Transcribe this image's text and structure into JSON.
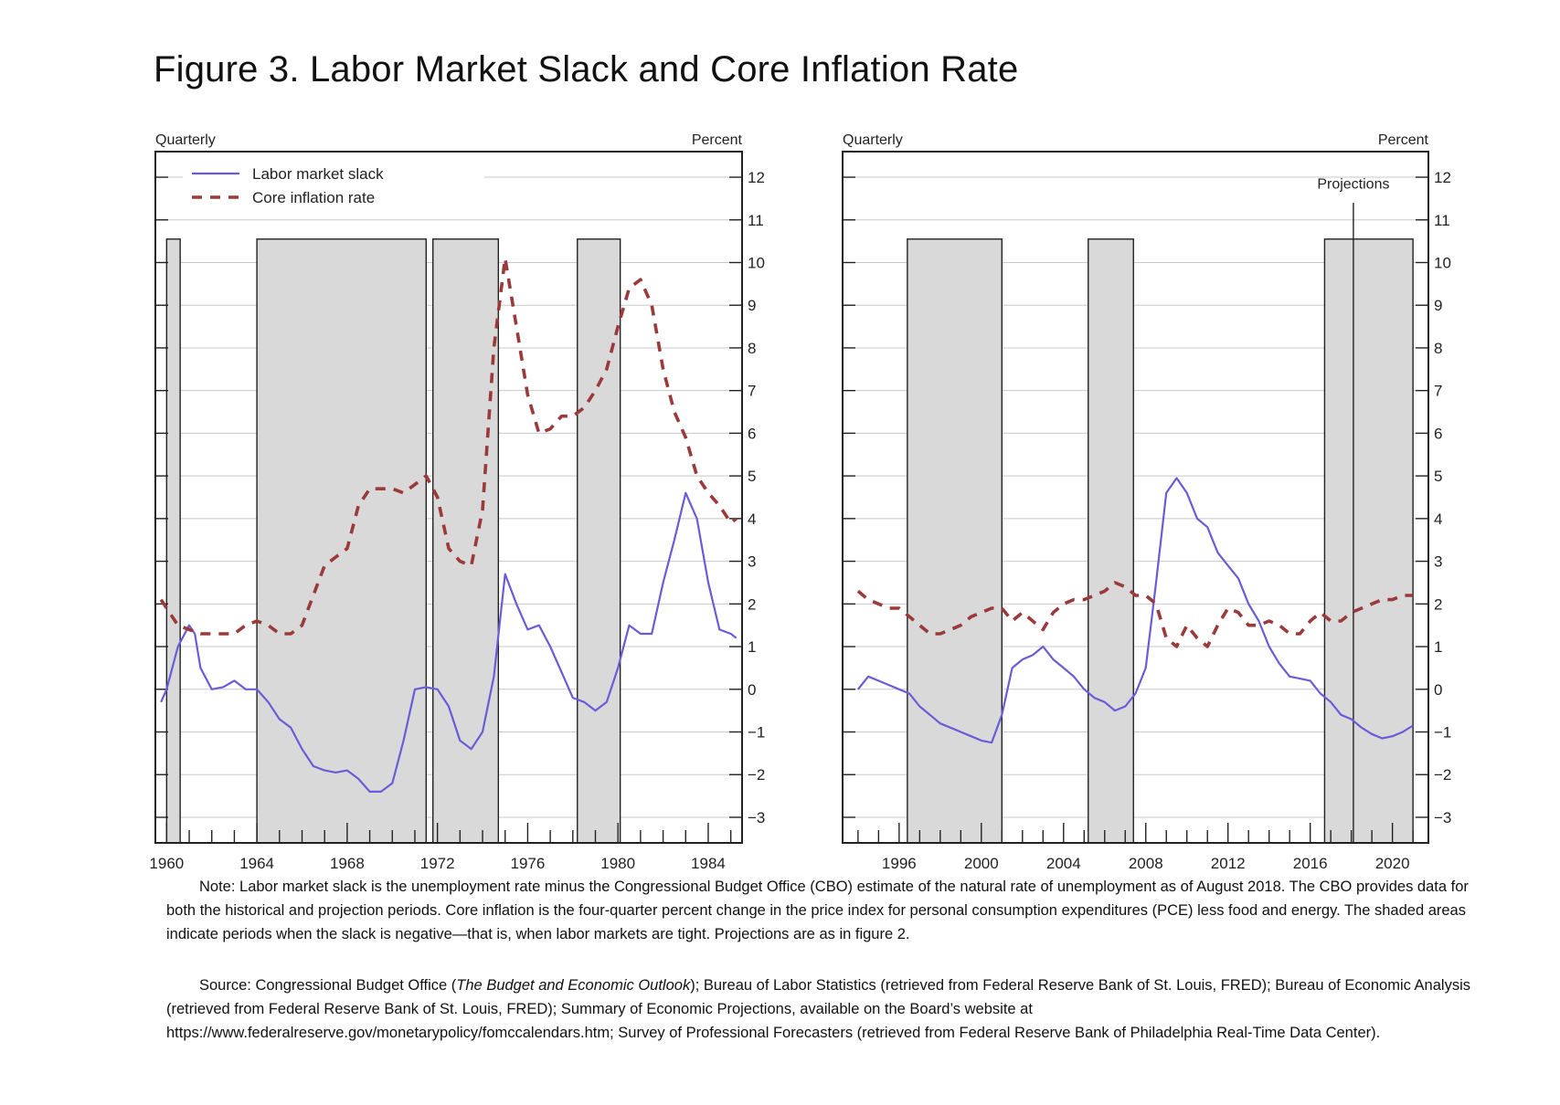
{
  "figure": {
    "title": "Figure 3.  Labor Market Slack and Core Inflation Rate",
    "note_label": "Note:",
    "note_text": "Labor market slack is the unemployment rate minus the Congressional Budget Office (CBO) estimate of the natural rate of unemployment as of August 2018.  The CBO provides data for both the historical and projection periods.  Core inflation is the four-quarter percent change in the price index for personal consumption expenditures (PCE) less food and energy.  The shaded areas indicate periods when the slack is negative—that is, when labor markets are tight.  Projections are as in figure 2.",
    "source_label": "Source:",
    "source_pre": "Congressional Budget Office (",
    "source_italic": "The Budget and Economic Outlook",
    "source_post": "); Bureau of Labor Statistics (retrieved from Federal Reserve Bank of St. Louis, FRED); Bureau of Economic Analysis (retrieved from Federal Reserve Bank of St. Louis, FRED); Summary of Economic Projections, available on the Board’s website at https://www.federalreserve.gov/monetarypolicy/fomccalendars.htm; Survey of Professional Forecasters (retrieved from Federal Reserve Bank of Philadelphia Real-Time Data Center)."
  },
  "colors": {
    "slack": "#6a5cd8",
    "inflation": "#9b3a3a",
    "shade": "#d9d9d9",
    "axis": "#222222",
    "grid": "#c8c8c8"
  },
  "chart_data": [
    {
      "type": "line",
      "frequency_label": "Quarterly",
      "unit_label": "Percent",
      "xlim": [
        1959.5,
        1985.5
      ],
      "ylim": [
        -3.6,
        12.6
      ],
      "yticks": [
        -3,
        -2,
        -1,
        0,
        1,
        2,
        3,
        4,
        5,
        6,
        7,
        8,
        9,
        10,
        11,
        12
      ],
      "grid": true,
      "xtick_labels": [
        "1960",
        "1964",
        "1968",
        "1972",
        "1976",
        "1980",
        "1984"
      ],
      "xtick_values": [
        1960,
        1964,
        1968,
        1972,
        1976,
        1980,
        1984
      ],
      "legend_position": "top-left",
      "shaded_periods": [
        [
          1960.0,
          1960.6
        ],
        [
          1964.0,
          1971.5
        ],
        [
          1971.8,
          1974.7
        ],
        [
          1978.2,
          1980.1
        ]
      ],
      "series": [
        {
          "name": "Labor market slack",
          "style": "solid",
          "points": [
            [
              1959.75,
              -0.3
            ],
            [
              1960.0,
              0.0
            ],
            [
              1960.5,
              1.0
            ],
            [
              1961.0,
              1.5
            ],
            [
              1961.25,
              1.3
            ],
            [
              1961.5,
              0.5
            ],
            [
              1962.0,
              0.0
            ],
            [
              1962.5,
              0.05
            ],
            [
              1963.0,
              0.2
            ],
            [
              1963.5,
              0.0
            ],
            [
              1964.0,
              0.0
            ],
            [
              1964.5,
              -0.3
            ],
            [
              1965.0,
              -0.7
            ],
            [
              1965.5,
              -0.9
            ],
            [
              1966.0,
              -1.4
            ],
            [
              1966.5,
              -1.8
            ],
            [
              1967.0,
              -1.9
            ],
            [
              1967.5,
              -1.95
            ],
            [
              1968.0,
              -1.9
            ],
            [
              1968.5,
              -2.1
            ],
            [
              1969.0,
              -2.4
            ],
            [
              1969.5,
              -2.4
            ],
            [
              1970.0,
              -2.2
            ],
            [
              1970.5,
              -1.2
            ],
            [
              1971.0,
              0.0
            ],
            [
              1971.5,
              0.05
            ],
            [
              1972.0,
              0.0
            ],
            [
              1972.5,
              -0.4
            ],
            [
              1973.0,
              -1.2
            ],
            [
              1973.5,
              -1.4
            ],
            [
              1974.0,
              -1.0
            ],
            [
              1974.5,
              0.3
            ],
            [
              1975.0,
              2.7
            ],
            [
              1975.5,
              2.0
            ],
            [
              1976.0,
              1.4
            ],
            [
              1976.5,
              1.5
            ],
            [
              1977.0,
              1.0
            ],
            [
              1977.5,
              0.4
            ],
            [
              1978.0,
              -0.2
            ],
            [
              1978.5,
              -0.3
            ],
            [
              1979.0,
              -0.5
            ],
            [
              1979.5,
              -0.3
            ],
            [
              1980.0,
              0.5
            ],
            [
              1980.5,
              1.5
            ],
            [
              1981.0,
              1.3
            ],
            [
              1981.5,
              1.3
            ],
            [
              1982.0,
              2.5
            ],
            [
              1982.5,
              3.5
            ],
            [
              1983.0,
              4.6
            ],
            [
              1983.5,
              4.0
            ],
            [
              1984.0,
              2.5
            ],
            [
              1984.5,
              1.4
            ],
            [
              1985.0,
              1.3
            ],
            [
              1985.25,
              1.2
            ]
          ]
        },
        {
          "name": "Core inflation rate",
          "style": "dashed",
          "points": [
            [
              1959.75,
              2.1
            ],
            [
              1960.0,
              1.9
            ],
            [
              1960.5,
              1.5
            ],
            [
              1961.0,
              1.4
            ],
            [
              1961.5,
              1.3
            ],
            [
              1962.0,
              1.3
            ],
            [
              1962.5,
              1.3
            ],
            [
              1963.0,
              1.3
            ],
            [
              1963.5,
              1.5
            ],
            [
              1964.0,
              1.6
            ],
            [
              1964.5,
              1.5
            ],
            [
              1965.0,
              1.3
            ],
            [
              1965.5,
              1.3
            ],
            [
              1966.0,
              1.5
            ],
            [
              1966.5,
              2.2
            ],
            [
              1967.0,
              2.9
            ],
            [
              1967.5,
              3.1
            ],
            [
              1968.0,
              3.3
            ],
            [
              1968.5,
              4.3
            ],
            [
              1969.0,
              4.7
            ],
            [
              1969.5,
              4.7
            ],
            [
              1970.0,
              4.7
            ],
            [
              1970.5,
              4.6
            ],
            [
              1971.0,
              4.8
            ],
            [
              1971.5,
              5.0
            ],
            [
              1972.0,
              4.5
            ],
            [
              1972.5,
              3.3
            ],
            [
              1973.0,
              3.0
            ],
            [
              1973.5,
              2.9
            ],
            [
              1974.0,
              4.2
            ],
            [
              1974.5,
              8.0
            ],
            [
              1975.0,
              10.1
            ],
            [
              1975.5,
              8.5
            ],
            [
              1976.0,
              6.9
            ],
            [
              1976.5,
              6.0
            ],
            [
              1977.0,
              6.1
            ],
            [
              1977.5,
              6.4
            ],
            [
              1978.0,
              6.4
            ],
            [
              1978.5,
              6.6
            ],
            [
              1979.0,
              7.0
            ],
            [
              1979.5,
              7.5
            ],
            [
              1980.0,
              8.5
            ],
            [
              1980.5,
              9.4
            ],
            [
              1981.0,
              9.6
            ],
            [
              1981.5,
              9.0
            ],
            [
              1982.0,
              7.5
            ],
            [
              1982.5,
              6.5
            ],
            [
              1983.0,
              5.9
            ],
            [
              1983.5,
              5.0
            ],
            [
              1984.0,
              4.6
            ],
            [
              1984.5,
              4.3
            ],
            [
              1985.0,
              3.9
            ],
            [
              1985.25,
              4.0
            ]
          ]
        }
      ]
    },
    {
      "type": "line",
      "frequency_label": "Quarterly",
      "unit_label": "Percent",
      "xlim": [
        1993.25,
        2021.75
      ],
      "ylim": [
        -3.6,
        12.6
      ],
      "yticks": [
        -3,
        -2,
        -1,
        0,
        1,
        2,
        3,
        4,
        5,
        6,
        7,
        8,
        9,
        10,
        11,
        12
      ],
      "grid": true,
      "xtick_labels": [
        "1996",
        "2000",
        "2004",
        "2008",
        "2012",
        "2016",
        "2020"
      ],
      "xtick_values": [
        1996,
        2000,
        2004,
        2008,
        2012,
        2016,
        2020
      ],
      "shaded_periods": [
        [
          1996.4,
          2001.0
        ],
        [
          2005.2,
          2007.4
        ],
        [
          2016.7,
          2021.0
        ]
      ],
      "projection_label": "Projections",
      "projection_start": 2018.1,
      "series": [
        {
          "name": "Labor market slack",
          "style": "solid",
          "points": [
            [
              1994.0,
              0.0
            ],
            [
              1994.5,
              0.3
            ],
            [
              1995.0,
              0.2
            ],
            [
              1995.5,
              0.1
            ],
            [
              1996.0,
              0.0
            ],
            [
              1996.5,
              -0.1
            ],
            [
              1997.0,
              -0.4
            ],
            [
              1997.5,
              -0.6
            ],
            [
              1998.0,
              -0.8
            ],
            [
              1998.5,
              -0.9
            ],
            [
              1999.0,
              -1.0
            ],
            [
              1999.5,
              -1.1
            ],
            [
              2000.0,
              -1.2
            ],
            [
              2000.5,
              -1.25
            ],
            [
              2001.0,
              -0.6
            ],
            [
              2001.5,
              0.5
            ],
            [
              2002.0,
              0.7
            ],
            [
              2002.5,
              0.8
            ],
            [
              2003.0,
              1.0
            ],
            [
              2003.5,
              0.7
            ],
            [
              2004.0,
              0.5
            ],
            [
              2004.5,
              0.3
            ],
            [
              2005.0,
              0.0
            ],
            [
              2005.5,
              -0.2
            ],
            [
              2006.0,
              -0.3
            ],
            [
              2006.5,
              -0.5
            ],
            [
              2007.0,
              -0.4
            ],
            [
              2007.5,
              -0.1
            ],
            [
              2008.0,
              0.5
            ],
            [
              2008.5,
              2.5
            ],
            [
              2009.0,
              4.6
            ],
            [
              2009.5,
              4.95
            ],
            [
              2010.0,
              4.6
            ],
            [
              2010.5,
              4.0
            ],
            [
              2011.0,
              3.8
            ],
            [
              2011.5,
              3.2
            ],
            [
              2012.0,
              2.9
            ],
            [
              2012.5,
              2.6
            ],
            [
              2013.0,
              2.0
            ],
            [
              2013.5,
              1.6
            ],
            [
              2014.0,
              1.0
            ],
            [
              2014.5,
              0.6
            ],
            [
              2015.0,
              0.3
            ],
            [
              2015.5,
              0.25
            ],
            [
              2016.0,
              0.2
            ],
            [
              2016.5,
              -0.1
            ],
            [
              2017.0,
              -0.3
            ],
            [
              2017.5,
              -0.6
            ],
            [
              2018.0,
              -0.7
            ],
            [
              2018.5,
              -0.9
            ],
            [
              2019.0,
              -1.05
            ],
            [
              2019.5,
              -1.15
            ],
            [
              2020.0,
              -1.1
            ],
            [
              2020.5,
              -1.0
            ],
            [
              2021.0,
              -0.85
            ]
          ]
        },
        {
          "name": "Core inflation rate",
          "style": "dashed",
          "points": [
            [
              1994.0,
              2.3
            ],
            [
              1994.5,
              2.1
            ],
            [
              1995.0,
              2.0
            ],
            [
              1995.5,
              1.9
            ],
            [
              1996.0,
              1.9
            ],
            [
              1996.5,
              1.7
            ],
            [
              1997.0,
              1.5
            ],
            [
              1997.5,
              1.3
            ],
            [
              1998.0,
              1.3
            ],
            [
              1998.5,
              1.4
            ],
            [
              1999.0,
              1.5
            ],
            [
              1999.5,
              1.7
            ],
            [
              2000.0,
              1.8
            ],
            [
              2000.5,
              1.9
            ],
            [
              2001.0,
              1.9
            ],
            [
              2001.5,
              1.6
            ],
            [
              2002.0,
              1.8
            ],
            [
              2002.5,
              1.6
            ],
            [
              2003.0,
              1.4
            ],
            [
              2003.5,
              1.8
            ],
            [
              2004.0,
              2.0
            ],
            [
              2004.5,
              2.1
            ],
            [
              2005.0,
              2.1
            ],
            [
              2005.5,
              2.2
            ],
            [
              2006.0,
              2.3
            ],
            [
              2006.5,
              2.5
            ],
            [
              2007.0,
              2.4
            ],
            [
              2007.5,
              2.2
            ],
            [
              2008.0,
              2.2
            ],
            [
              2008.5,
              2.0
            ],
            [
              2009.0,
              1.2
            ],
            [
              2009.5,
              1.0
            ],
            [
              2010.0,
              1.5
            ],
            [
              2010.5,
              1.2
            ],
            [
              2011.0,
              1.0
            ],
            [
              2011.5,
              1.5
            ],
            [
              2012.0,
              1.9
            ],
            [
              2012.5,
              1.8
            ],
            [
              2013.0,
              1.5
            ],
            [
              2013.5,
              1.5
            ],
            [
              2014.0,
              1.6
            ],
            [
              2014.5,
              1.5
            ],
            [
              2015.0,
              1.3
            ],
            [
              2015.5,
              1.3
            ],
            [
              2016.0,
              1.6
            ],
            [
              2016.5,
              1.8
            ],
            [
              2017.0,
              1.6
            ],
            [
              2017.5,
              1.6
            ],
            [
              2018.0,
              1.8
            ],
            [
              2018.5,
              1.9
            ],
            [
              2019.0,
              2.0
            ],
            [
              2019.5,
              2.1
            ],
            [
              2020.0,
              2.1
            ],
            [
              2020.5,
              2.2
            ],
            [
              2021.0,
              2.2
            ]
          ]
        }
      ]
    }
  ]
}
